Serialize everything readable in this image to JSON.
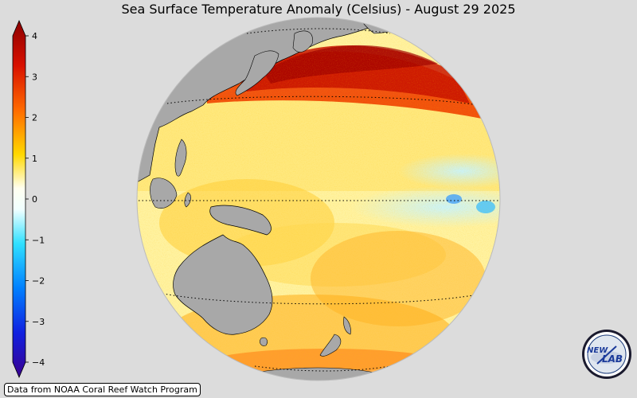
{
  "title": "Sea Surface Temperature Anomaly (Celsius) - August 29 2025",
  "colorbar": {
    "ticks": [
      {
        "value": 4,
        "label": "4"
      },
      {
        "value": 3,
        "label": "3"
      },
      {
        "value": 2,
        "label": "2"
      },
      {
        "value": 1,
        "label": "1"
      },
      {
        "value": 0,
        "label": "0"
      },
      {
        "value": -1,
        "label": "−1"
      },
      {
        "value": -2,
        "label": "−2"
      },
      {
        "value": -3,
        "label": "−3"
      },
      {
        "value": -4,
        "label": "−4"
      }
    ],
    "range": [
      -4,
      4
    ],
    "colors": {
      "max": "#8b0000",
      "high": "#e82000",
      "warm": "#ff9800",
      "mild": "#ffff00",
      "zero": "#ffffff",
      "cool": "#40e0ff",
      "cold": "#0050ff",
      "min": "#3000a0"
    }
  },
  "map": {
    "land_color": "#a8a8a8",
    "ocean_base_color": "#fff4b0",
    "background_color": "#dcdcdc"
  },
  "credit": "Data from NOAA Coral Reef Watch Program",
  "logo": {
    "text_primary": "NEW",
    "text_secondary": "LAB"
  }
}
